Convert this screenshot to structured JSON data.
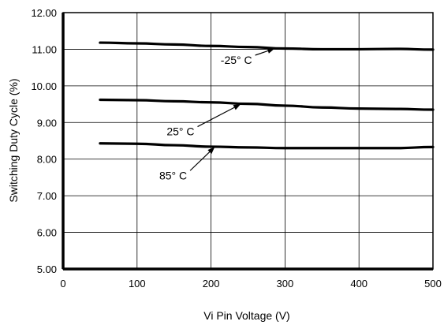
{
  "chart_data": {
    "type": "line",
    "title": "",
    "xlabel": "Vi Pin Voltage (V)",
    "ylabel": "Switching Duty Cycle (%)",
    "xlim": [
      0,
      500
    ],
    "ylim": [
      5.0,
      12.0
    ],
    "x_ticks": [
      0,
      100,
      200,
      300,
      400,
      500
    ],
    "x_tick_labels": [
      "0",
      "100",
      "200",
      "300",
      "400",
      "500"
    ],
    "y_ticks": [
      5,
      6,
      7,
      8,
      9,
      10,
      11,
      12
    ],
    "y_tick_labels": [
      "5.00",
      "6.00",
      "7.00",
      "8.00",
      "9.00",
      "10.00",
      "11.00",
      "12.00"
    ],
    "grid": true,
    "series": [
      {
        "name": "-25° C",
        "x": [
          50,
          100,
          150,
          200,
          250,
          300,
          350,
          400,
          450,
          500
        ],
        "y": [
          11.18,
          11.16,
          11.13,
          11.09,
          11.06,
          11.02,
          11.0,
          11.0,
          11.01,
          10.99
        ]
      },
      {
        "name": "25° C",
        "x": [
          50,
          100,
          150,
          200,
          250,
          300,
          350,
          400,
          450,
          500
        ],
        "y": [
          9.62,
          9.61,
          9.58,
          9.55,
          9.51,
          9.46,
          9.41,
          9.38,
          9.37,
          9.35
        ]
      },
      {
        "name": "85° C",
        "x": [
          50,
          100,
          150,
          200,
          250,
          300,
          350,
          400,
          450,
          500
        ],
        "y": [
          8.43,
          8.42,
          8.38,
          8.34,
          8.32,
          8.3,
          8.3,
          8.3,
          8.3,
          8.33
        ]
      }
    ],
    "annotations": [
      {
        "text": "-25° C",
        "series": 0,
        "label_at": [
          213,
          10.6
        ],
        "arrow_to": [
          286,
          11.02
        ]
      },
      {
        "text": "25° C",
        "series": 1,
        "label_at": [
          140,
          8.65
        ],
        "arrow_to": [
          240,
          9.5
        ]
      },
      {
        "text": "85° C",
        "series": 2,
        "label_at": [
          130,
          7.45
        ],
        "arrow_to": [
          205,
          8.33
        ]
      }
    ]
  }
}
